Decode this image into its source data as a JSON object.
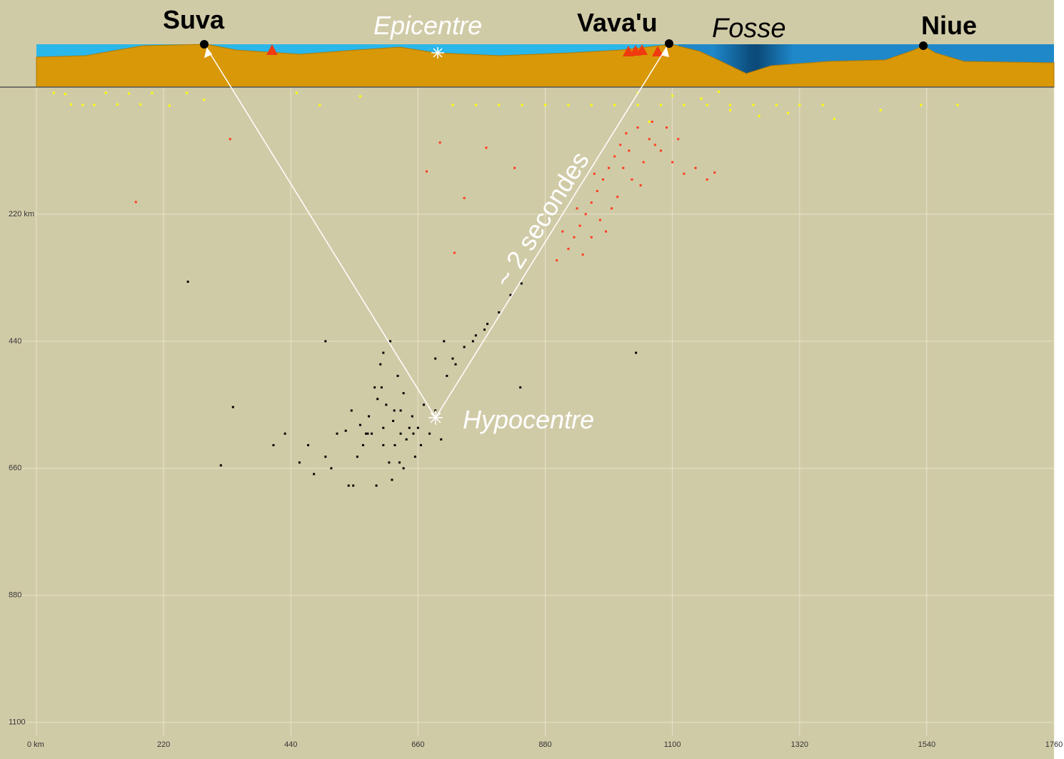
{
  "chart_data": {
    "type": "scatter",
    "xlim": [
      0,
      1760
    ],
    "ylim": [
      0,
      1130
    ],
    "xticks": [
      {
        "value": 0,
        "label": "0 km"
      },
      220,
      440,
      660,
      880,
      1100,
      1320,
      1540,
      1760
    ],
    "yticks": [
      {
        "value": 220,
        "label": "220 km"
      },
      440,
      660,
      880,
      1100
    ],
    "grid": true,
    "annotations": {
      "suva": "Suva",
      "epicentre": "Epicentre",
      "vavau": "Vava'u",
      "fosse": "Fosse",
      "niue": "Niue",
      "hypocentre": "Hypocentre",
      "time": "~ 2 secondes"
    },
    "series": [
      {
        "color": "#000000",
        "x": [
          617,
          600,
          630,
          580,
          650,
          560,
          640,
          590,
          620,
          605,
          570,
          660,
          545,
          680,
          700,
          610,
          625,
          595,
          555,
          585,
          635,
          645,
          575,
          565,
          615,
          655,
          535,
          690,
          520,
          470,
          500,
          480,
          455,
          510,
          540,
          670,
          710,
          725,
          740,
          760,
          780,
          800,
          820,
          839,
          690,
          705,
          720,
          755,
          775,
          600,
          612,
          628,
          588,
          548,
          665,
          635,
          597,
          573,
          652,
          619,
          262,
          1037,
          340,
          319,
          837,
          500,
          430,
          410,
          600,
          630
        ],
        "y": [
          578,
          590,
          560,
          600,
          570,
          585,
          610,
          540,
          620,
          550,
          600,
          590,
          560,
          600,
          610,
          650,
          500,
          480,
          640,
          520,
          530,
          590,
          570,
          620,
          680,
          640,
          595,
          560,
          600,
          620,
          640,
          670,
          650,
          660,
          690,
          550,
          500,
          480,
          450,
          430,
          410,
          390,
          360,
          340,
          470,
          440,
          470,
          440,
          420,
          460,
          440,
          650,
          690,
          690,
          620,
          660,
          520,
          600,
          600,
          560,
          337,
          460,
          554,
          655,
          520,
          440,
          600,
          620,
          620,
          600
        ]
      },
      {
        "color": "#ff3b1f",
        "x": [
          950,
          960,
          940,
          970,
          930,
          980,
          990,
          1000,
          1010,
          1020,
          1040,
          1060,
          1080,
          1100,
          1120,
          1140,
          1160,
          1173,
          960,
          920,
          900,
          910,
          945,
          975,
          1005,
          1030,
          1050,
          1070,
          1090,
          1025,
          1045,
          995,
          965,
          985,
          935,
          1015,
          1065,
          1110,
          698,
          675,
          335,
          172,
          723,
          740,
          778,
          827
        ],
        "y": [
          220,
          200,
          240,
          180,
          260,
          160,
          140,
          120,
          100,
          80,
          70,
          90,
          110,
          130,
          150,
          140,
          160,
          148,
          260,
          280,
          300,
          250,
          290,
          230,
          190,
          160,
          130,
          100,
          70,
          110,
          170,
          210,
          150,
          250,
          210,
          140,
          60,
          90,
          96,
          146,
          90,
          199,
          287,
          192,
          105,
          140
        ]
      },
      {
        "color": "#ffff00",
        "x": [
          30,
          50,
          60,
          80,
          100,
          120,
          140,
          160,
          180,
          200,
          230,
          260,
          290,
          450,
          490,
          560,
          720,
          760,
          800,
          840,
          880,
          920,
          960,
          1000,
          1040,
          1080,
          1120,
          1160,
          1200,
          1240,
          1280,
          1320,
          1360,
          1100,
          1150,
          1200,
          1250,
          1300,
          1380,
          1460,
          1530,
          1593,
          1060,
          1040,
          1180
        ],
        "y": [
          10,
          12,
          30,
          31,
          31,
          10,
          30,
          11,
          30,
          10,
          32,
          10,
          22,
          10,
          31,
          16,
          31,
          31,
          31,
          31,
          31,
          31,
          31,
          31,
          31,
          31,
          31,
          31,
          31,
          31,
          31,
          31,
          31,
          15,
          20,
          40,
          50,
          45,
          55,
          40,
          31,
          31,
          60,
          10,
          8
        ]
      }
    ]
  }
}
